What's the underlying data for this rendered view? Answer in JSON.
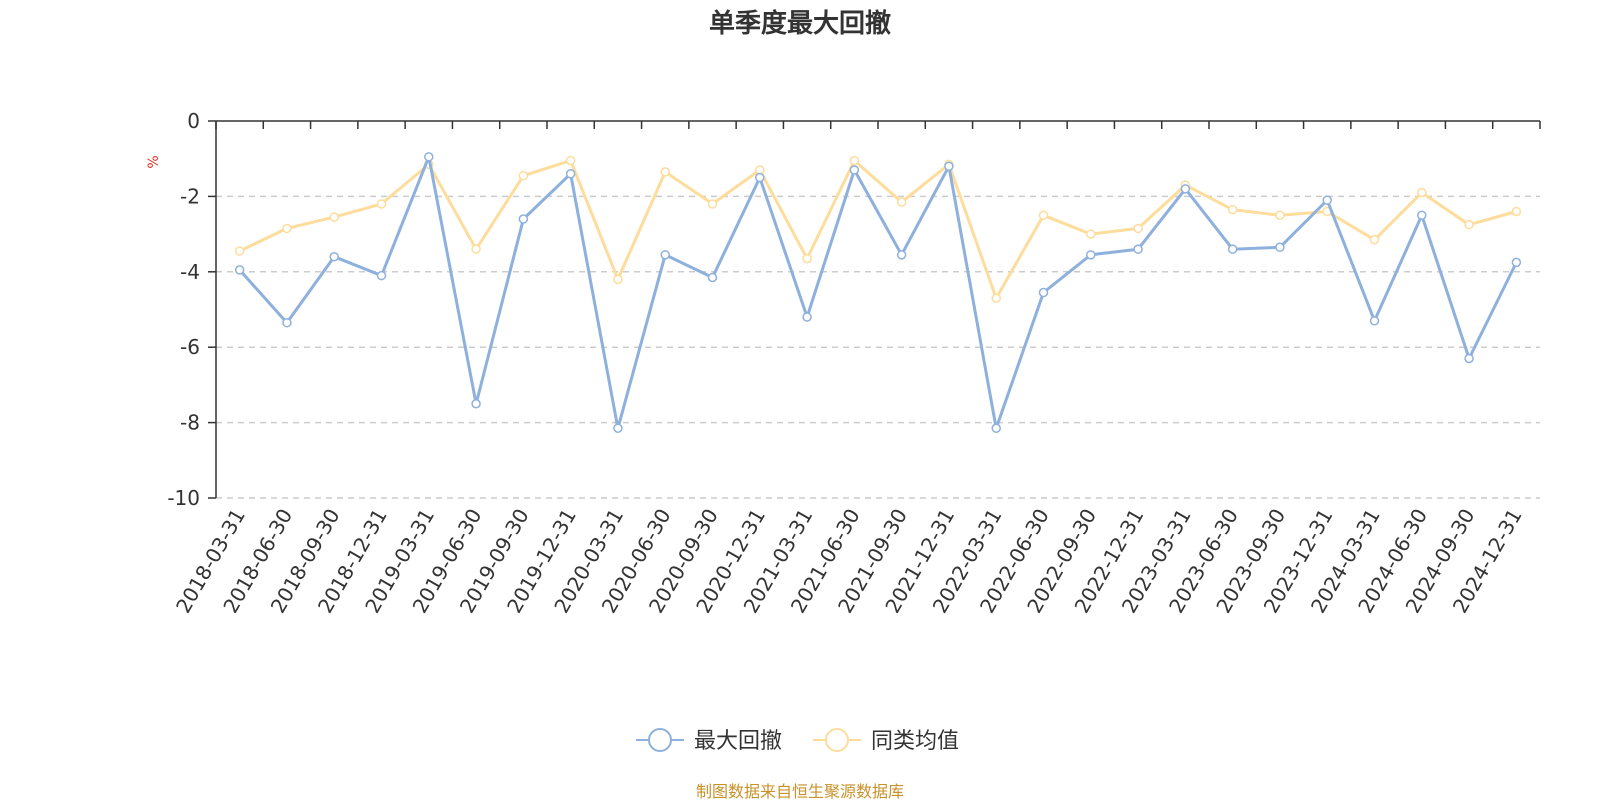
{
  "colors": {
    "series1": "#8eb0dc",
    "series2": "#fddc9c",
    "unit": "#e3322b",
    "source": "#c8922a",
    "axis": "#333333",
    "grid": "#cccccc"
  },
  "chart_data": {
    "type": "line",
    "title": "单季度最大回撤",
    "ylabel": "%",
    "ylim": [
      -10,
      0
    ],
    "yticks": [
      0,
      -2,
      -4,
      -6,
      -8,
      -10
    ],
    "grid": "horizontal dashed",
    "legend_position": "bottom-center",
    "categories": [
      "2018-03-31",
      "2018-06-30",
      "2018-09-30",
      "2018-12-31",
      "2019-03-31",
      "2019-06-30",
      "2019-09-30",
      "2019-12-31",
      "2020-03-31",
      "2020-06-30",
      "2020-09-30",
      "2020-12-31",
      "2021-03-31",
      "2021-06-30",
      "2021-09-30",
      "2021-12-31",
      "2022-03-31",
      "2022-06-30",
      "2022-09-30",
      "2022-12-31",
      "2023-03-31",
      "2023-06-30",
      "2023-09-30",
      "2023-12-31",
      "2024-03-31",
      "2024-06-30",
      "2024-09-30",
      "2024-12-31"
    ],
    "series": [
      {
        "name": "最大回撤",
        "values": [
          -3.95,
          -5.35,
          -3.6,
          -4.1,
          -0.95,
          -7.5,
          -2.6,
          -1.4,
          -8.15,
          -3.55,
          -4.15,
          -1.5,
          -5.2,
          -1.3,
          -3.55,
          -1.2,
          -8.15,
          -4.55,
          -3.55,
          -3.4,
          -1.8,
          -3.4,
          -3.35,
          -2.1,
          -5.3,
          -2.5,
          -6.3,
          -3.75
        ]
      },
      {
        "name": "同类均值",
        "values": [
          -3.45,
          -2.85,
          -2.55,
          -2.2,
          -1.15,
          -3.4,
          -1.45,
          -1.05,
          -4.2,
          -1.35,
          -2.2,
          -1.3,
          -3.65,
          -1.05,
          -2.15,
          -1.15,
          -4.7,
          -2.5,
          -3.0,
          -2.85,
          -1.7,
          -2.35,
          -2.5,
          -2.4,
          -3.15,
          -1.9,
          -2.75,
          -2.4
        ]
      }
    ]
  },
  "footer": {
    "source": "制图数据来自恒生聚源数据库"
  }
}
